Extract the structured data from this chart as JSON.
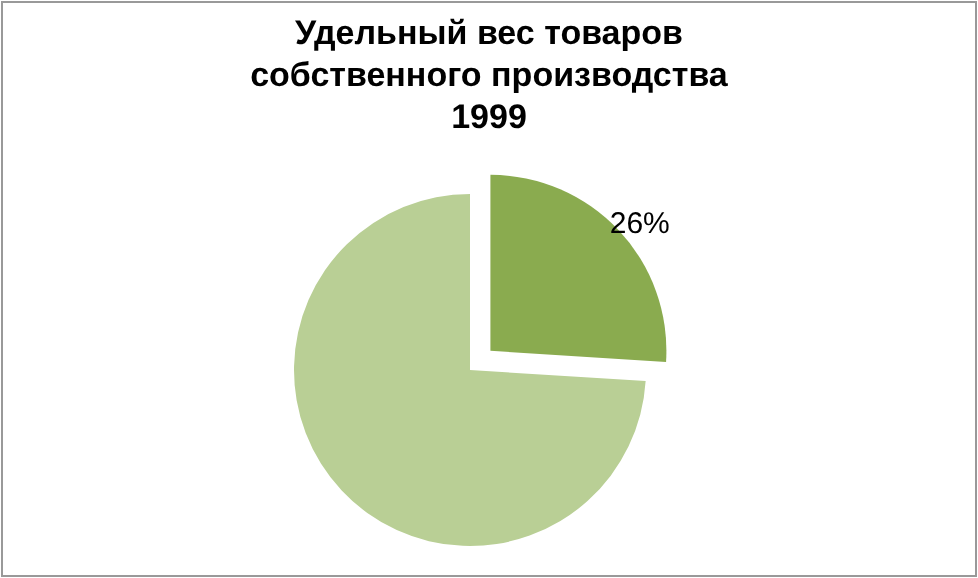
{
  "chart_data": {
    "type": "pie",
    "title": "Удельный вес товаров\nсобственного производства\n1999",
    "categories": [
      null,
      null
    ],
    "values": [
      26,
      74
    ],
    "colors": [
      "#8aab4f",
      "#b9cf95"
    ],
    "value_labels": [
      "26%",
      null
    ]
  }
}
